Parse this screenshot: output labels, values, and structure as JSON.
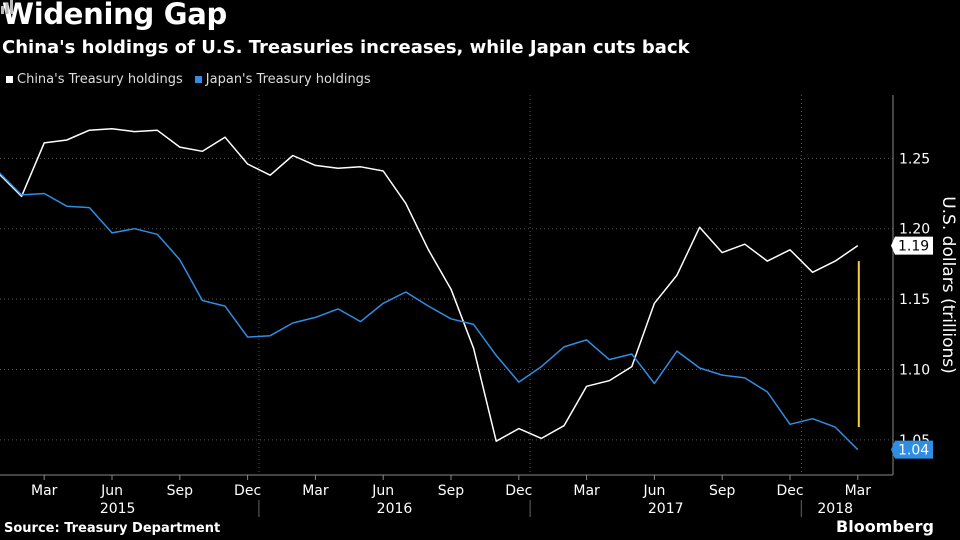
{
  "header": {
    "title": "Widening Gap",
    "subtitle": "China's holdings of U.S. Treasuries increases, while Japan cuts back"
  },
  "footer": {
    "source": "Source: Treasury Department",
    "brand": "Bloomberg"
  },
  "colors": {
    "china": "#ffffff",
    "japan": "#2f8de4",
    "gap_marker": "#f5d23c",
    "grid": "#555555"
  },
  "chart_data": {
    "type": "line",
    "ylabel": "U.S. dollars (trillions)",
    "ylim": [
      1.025,
      1.295
    ],
    "yticks": [
      1.05,
      1.1,
      1.15,
      1.2,
      1.25
    ],
    "ytick_labels": [
      "1.05",
      "1.10",
      "1.15",
      "1.20",
      "1.25"
    ],
    "x_months": [
      "2015-01",
      "2015-02",
      "2015-03",
      "2015-04",
      "2015-05",
      "2015-06",
      "2015-07",
      "2015-08",
      "2015-09",
      "2015-10",
      "2015-11",
      "2015-12",
      "2016-01",
      "2016-02",
      "2016-03",
      "2016-04",
      "2016-05",
      "2016-06",
      "2016-07",
      "2016-08",
      "2016-09",
      "2016-10",
      "2016-11",
      "2016-12",
      "2017-01",
      "2017-02",
      "2017-03",
      "2017-04",
      "2017-05",
      "2017-06",
      "2017-07",
      "2017-08",
      "2017-09",
      "2017-10",
      "2017-11",
      "2017-12",
      "2018-01",
      "2018-02",
      "2018-03"
    ],
    "month_ticks": [
      "Mar",
      "Jun",
      "Sep",
      "Dec",
      "Mar",
      "Jun",
      "Sep",
      "Dec",
      "Mar",
      "Jun",
      "Sep",
      "Dec",
      "Mar"
    ],
    "year_labels": [
      "2015",
      "2016",
      "2017",
      "2018"
    ],
    "series": [
      {
        "name": "China's Treasury holdings",
        "end_label": "1.19",
        "values": [
          1.239,
          1.223,
          1.261,
          1.263,
          1.27,
          1.271,
          1.269,
          1.27,
          1.258,
          1.255,
          1.265,
          1.246,
          1.238,
          1.252,
          1.245,
          1.243,
          1.244,
          1.241,
          1.218,
          1.185,
          1.157,
          1.115,
          1.049,
          1.058,
          1.051,
          1.06,
          1.088,
          1.092,
          1.102,
          1.147,
          1.167,
          1.201,
          1.183,
          1.189,
          1.177,
          1.185,
          1.169,
          1.177,
          1.188
        ]
      },
      {
        "name": "Japan's Treasury holdings",
        "end_label": "1.04",
        "values": [
          1.24,
          1.224,
          1.225,
          1.216,
          1.215,
          1.197,
          1.2,
          1.196,
          1.178,
          1.149,
          1.145,
          1.123,
          1.124,
          1.133,
          1.137,
          1.143,
          1.134,
          1.147,
          1.155,
          1.145,
          1.136,
          1.132,
          1.11,
          1.091,
          1.102,
          1.116,
          1.121,
          1.107,
          1.111,
          1.09,
          1.113,
          1.101,
          1.096,
          1.094,
          1.084,
          1.061,
          1.065,
          1.059,
          1.043
        ]
      }
    ],
    "gap_marker_range": [
      1.059,
      1.177
    ]
  }
}
